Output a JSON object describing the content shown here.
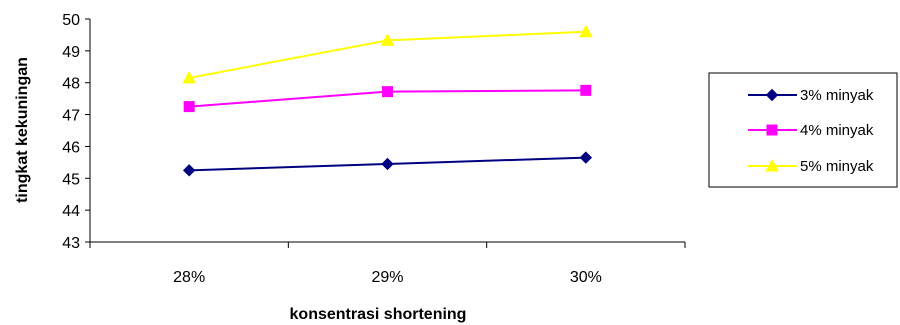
{
  "chart_data": {
    "type": "line",
    "title": "",
    "xlabel": "konsentrasi shortening",
    "ylabel": "tingkat kekuningan",
    "categories": [
      "28%",
      "29%",
      "30%"
    ],
    "ylim": [
      43,
      50
    ],
    "yticks": [
      43,
      44,
      45,
      46,
      47,
      48,
      49,
      50
    ],
    "grid": false,
    "legend_position": "right",
    "series": [
      {
        "name": "3% minyak",
        "values": [
          45.25,
          45.45,
          45.65
        ],
        "color": "#000080",
        "marker": "diamond"
      },
      {
        "name": "4% minyak",
        "values": [
          47.25,
          47.72,
          47.76
        ],
        "color": "#ff00ff",
        "marker": "square"
      },
      {
        "name": "5% minyak",
        "values": [
          48.15,
          49.33,
          49.6
        ],
        "color": "#ffff00",
        "marker": "triangle"
      }
    ]
  }
}
